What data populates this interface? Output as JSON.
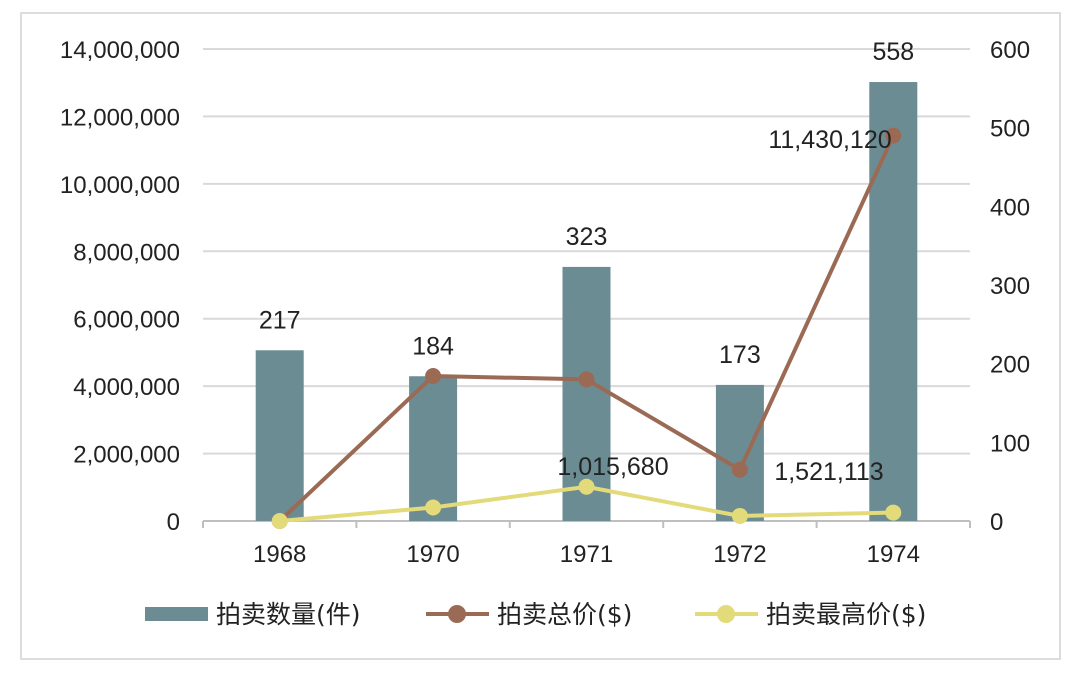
{
  "chart_data": {
    "type": "bar",
    "categories": [
      "1968",
      "1970",
      "1971",
      "1972",
      "1974"
    ],
    "series": [
      {
        "name": "拍卖数量(件)",
        "kind": "bar",
        "axis": "right",
        "values": [
          217,
          184,
          323,
          173,
          558
        ],
        "color": "#6b8c93"
      },
      {
        "name": "拍卖总价($)",
        "kind": "line",
        "axis": "left",
        "values": [
          0,
          4300000,
          4200000,
          1521113,
          11430120
        ],
        "color": "#9b6a55"
      },
      {
        "name": "拍卖最高价($)",
        "kind": "line",
        "axis": "left",
        "values": [
          0,
          400000,
          1015680,
          150000,
          250000
        ],
        "color": "#e3db7a"
      }
    ],
    "bar_labels": [
      "217",
      "184",
      "323",
      "173",
      "558"
    ],
    "annotations": [
      "11,430,120",
      "1,015,680",
      "1,521,113"
    ],
    "left_axis": {
      "ylim": [
        0,
        14000000
      ],
      "ticks": [
        "0",
        "2,000,000",
        "4,000,000",
        "6,000,000",
        "8,000,000",
        "10,000,000",
        "12,000,000",
        "14,000,000"
      ]
    },
    "right_axis": {
      "ylim": [
        0,
        600
      ],
      "ticks": [
        "0",
        "100",
        "200",
        "300",
        "400",
        "500",
        "600"
      ]
    },
    "grid": true,
    "legend_position": "bottom"
  }
}
